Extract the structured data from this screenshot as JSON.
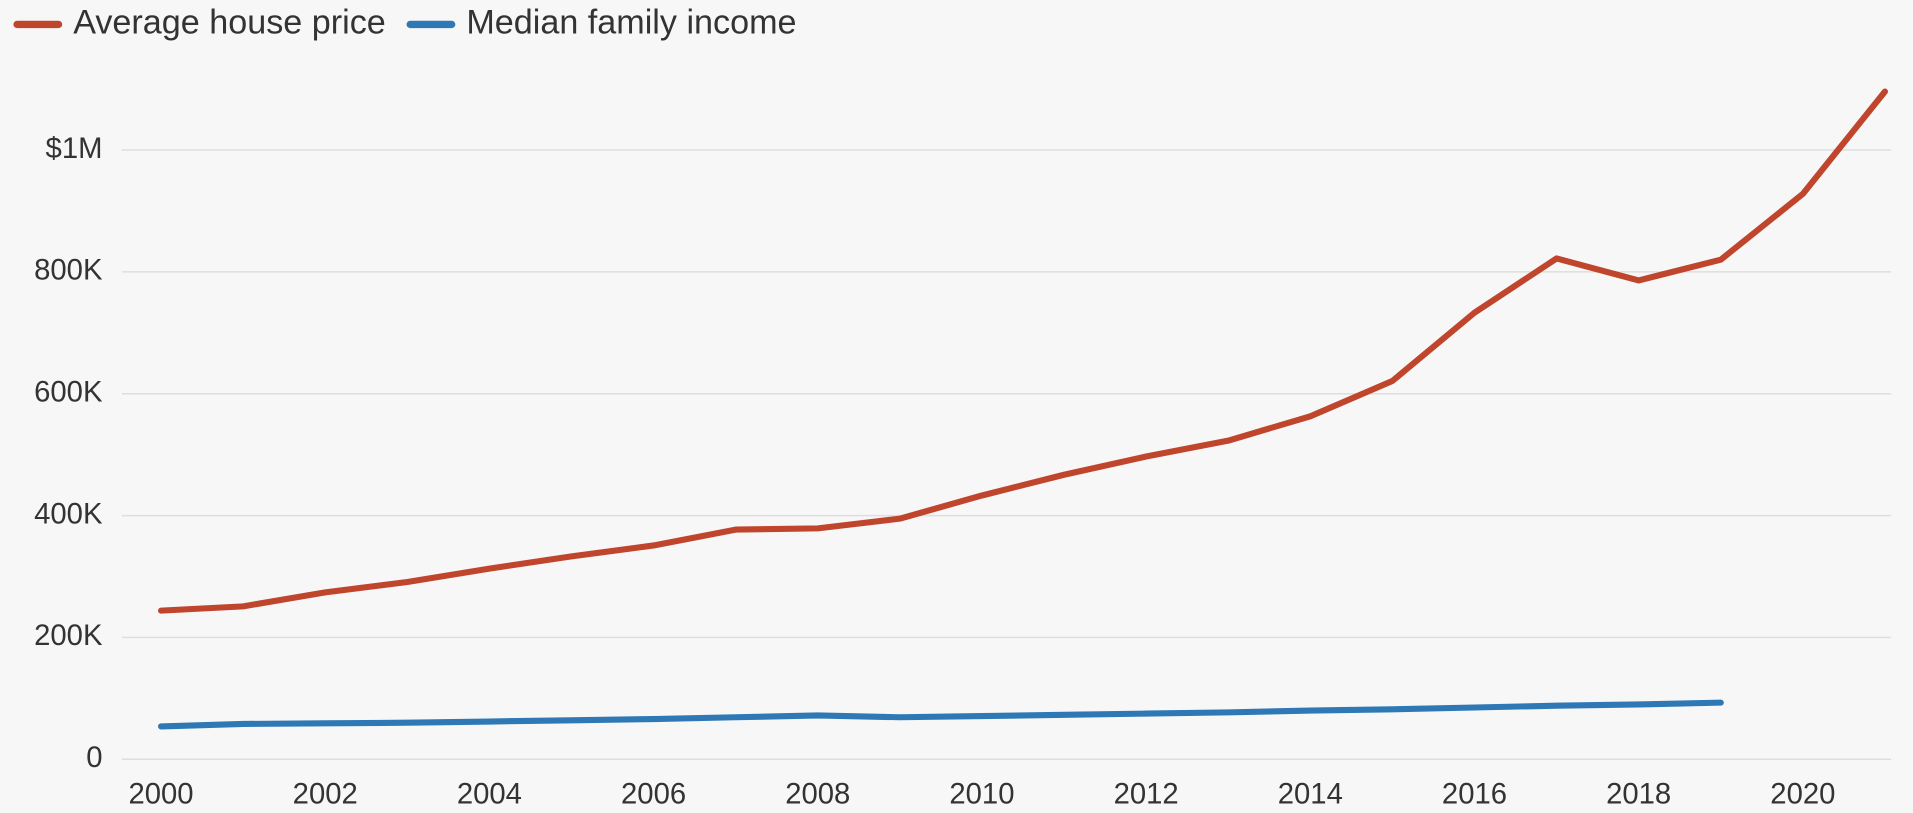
{
  "chart_data": {
    "type": "line",
    "x": [
      2000,
      2001,
      2002,
      2003,
      2004,
      2005,
      2006,
      2007,
      2008,
      2009,
      2010,
      2011,
      2012,
      2013,
      2014,
      2015,
      2016,
      2017,
      2018,
      2019,
      2020,
      2021
    ],
    "series": [
      {
        "name": "Average house price",
        "color": "#c0452d",
        "values": [
          244000,
          251000,
          274000,
          291000,
          313000,
          333000,
          351000,
          377000,
          379000,
          395000,
          433000,
          467000,
          497000,
          523000,
          563000,
          621000,
          733000,
          822000,
          786000,
          820000,
          928000,
          1096000
        ]
      },
      {
        "name": "Median family income",
        "color": "#2e78b5",
        "values": [
          54000,
          58000,
          59000,
          60000,
          62000,
          64000,
          66000,
          69000,
          72000,
          69000,
          71000,
          73000,
          75000,
          77000,
          80000,
          82000,
          85000,
          88000,
          90000,
          93000,
          null,
          null
        ]
      }
    ],
    "xlim": [
      2000,
      2021
    ],
    "xticks": [
      2000,
      2002,
      2004,
      2006,
      2008,
      2010,
      2012,
      2014,
      2016,
      2018,
      2020
    ],
    "ylim": [
      0,
      1100000
    ],
    "yticks": [
      0,
      {
        "value": 200000,
        "label": "200K"
      },
      {
        "value": 400000,
        "label": "400K"
      },
      {
        "value": 600000,
        "label": "600K"
      },
      {
        "value": 800000,
        "label": "800K"
      },
      {
        "value": 1000000,
        "label": "$1M"
      }
    ],
    "grid": true
  }
}
